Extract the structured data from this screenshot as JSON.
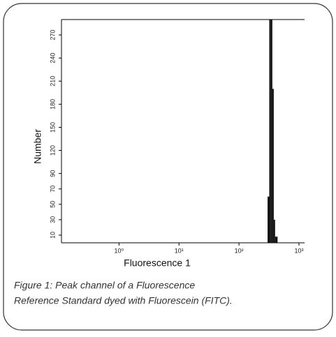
{
  "chart_data": {
    "type": "histogram",
    "xscale": "log",
    "color": "#111111",
    "xlabel": "Fluorescence 1",
    "ylabel": "Number",
    "bins": [
      300,
      320,
      340,
      360,
      380,
      400,
      440
    ],
    "values": [
      60,
      290,
      290,
      200,
      30,
      8
    ],
    "xlim": [
      0.11,
      1240
    ],
    "xticks": [
      {
        "value": 1,
        "label": "10⁰"
      },
      {
        "value": 10,
        "label": "10¹"
      },
      {
        "value": 100,
        "label": "10²"
      },
      {
        "value": 1000,
        "label": "10³"
      }
    ],
    "ylim": [
      0,
      290
    ],
    "yticks": [
      10,
      30,
      50,
      70,
      90,
      120,
      150,
      180,
      210,
      240,
      270
    ],
    "caption": [
      "Figure 1: Peak channel of a Fluorescence",
      "Reference Standard dyed with Fluorescein (FITC)."
    ]
  }
}
